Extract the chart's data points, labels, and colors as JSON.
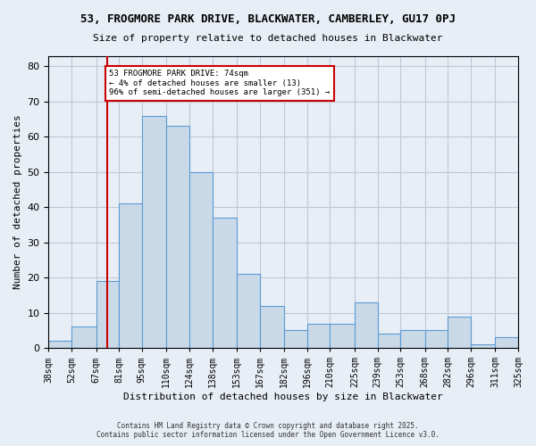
{
  "title1": "53, FROGMORE PARK DRIVE, BLACKWATER, CAMBERLEY, GU17 0PJ",
  "title2": "Size of property relative to detached houses in Blackwater",
  "xlabel": "Distribution of detached houses by size in Blackwater",
  "ylabel": "Number of detached properties",
  "bins": [
    38,
    52,
    67,
    81,
    95,
    110,
    124,
    138,
    153,
    167,
    182,
    196,
    210,
    225,
    239,
    253,
    268,
    282,
    296,
    311,
    325
  ],
  "counts": [
    2,
    6,
    19,
    41,
    66,
    63,
    50,
    37,
    21,
    12,
    5,
    7,
    7,
    13,
    4,
    5,
    5,
    9,
    1,
    3
  ],
  "bar_color": "#c9d9e8",
  "bar_edge_color": "#5b9bd5",
  "grid_color": "#c0c8d8",
  "background_color": "#e8eef5",
  "vline_x": 74,
  "vline_color": "#cc0000",
  "annotation_text": "53 FROGMORE PARK DRIVE: 74sqm\n← 4% of detached houses are smaller (13)\n96% of semi-detached houses are larger (351) →",
  "annotation_box_color": "white",
  "annotation_box_edge": "#cc0000",
  "ylim": [
    0,
    83
  ],
  "yticks": [
    0,
    10,
    20,
    30,
    40,
    50,
    60,
    70,
    80
  ],
  "footer1": "Contains HM Land Registry data © Crown copyright and database right 2025.",
  "footer2": "Contains public sector information licensed under the Open Government Licence v3.0."
}
